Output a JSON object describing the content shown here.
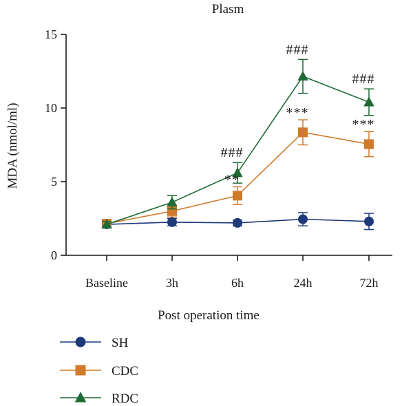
{
  "chart_data": {
    "type": "line",
    "title": "Plasm",
    "xlabel": "Post operation time",
    "ylabel": "MDA (nmol/ml)",
    "categories": [
      "Baseline",
      "3h",
      "6h",
      "24h",
      "72h"
    ],
    "ylim": [
      0,
      15
    ],
    "yticks": [
      0,
      5,
      10,
      15
    ],
    "grid": false,
    "legend_position": "bottom-left",
    "series": [
      {
        "name": "SH",
        "marker": "circle",
        "color": "#1f3a7a",
        "values": [
          2.1,
          2.25,
          2.2,
          2.45,
          2.3
        ],
        "errors": [
          0.2,
          0.25,
          0.2,
          0.45,
          0.55
        ],
        "annotations": [
          "",
          "",
          "",
          "",
          ""
        ]
      },
      {
        "name": "CDC",
        "marker": "square",
        "color": "#d07a2c",
        "values": [
          2.15,
          3.0,
          4.05,
          8.35,
          7.55
        ],
        "errors": [
          0.2,
          0.4,
          0.6,
          0.85,
          0.85
        ],
        "annotations": [
          "",
          "",
          "**",
          "***",
          "***"
        ]
      },
      {
        "name": "RDC",
        "marker": "triangle",
        "color": "#1f6b35",
        "values": [
          2.1,
          3.6,
          5.6,
          12.15,
          10.4
        ],
        "errors": [
          0.2,
          0.45,
          0.7,
          1.15,
          0.9
        ],
        "annotations": [
          "",
          "",
          "###",
          "###",
          "###"
        ]
      }
    ]
  }
}
